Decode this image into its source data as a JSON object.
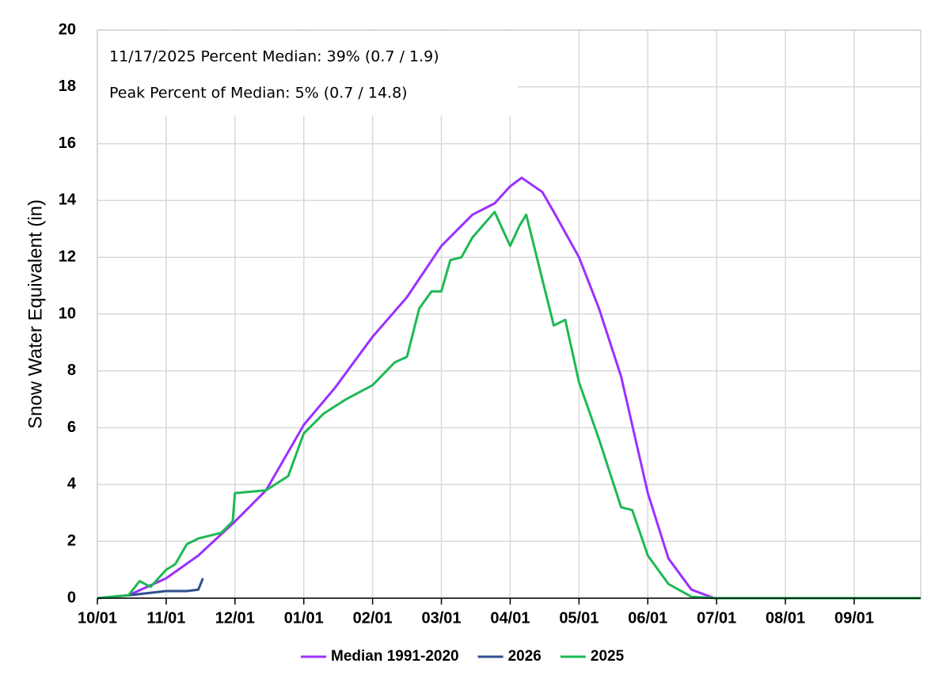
{
  "chart_data": {
    "type": "line",
    "y_label": "Snow Water Equivalent (in)",
    "annotations": [
      "11/17/2025 Percent Median: 39% (0.7 / 1.9)",
      "Peak Percent of Median: 5% (0.7 / 14.8)"
    ],
    "xlim": [
      "10/01",
      "09/30"
    ],
    "xticks": [
      "10/01",
      "11/01",
      "12/01",
      "01/01",
      "02/01",
      "03/01",
      "04/01",
      "05/01",
      "06/01",
      "07/01",
      "08/01",
      "09/01"
    ],
    "ylim": [
      0,
      20
    ],
    "yticks": [
      0,
      2,
      4,
      6,
      8,
      10,
      12,
      14,
      16,
      18,
      20
    ],
    "grid": true,
    "legend": "bottom",
    "series": [
      {
        "name": "Median 1991-2020",
        "color": "#9b30ff",
        "x": [
          "10/01",
          "10/15",
          "11/01",
          "11/15",
          "12/01",
          "12/15",
          "01/01",
          "01/15",
          "02/01",
          "02/15",
          "03/01",
          "03/15",
          "03/25",
          "04/01",
          "04/06",
          "04/15",
          "04/20",
          "05/01",
          "05/10",
          "05/20",
          "06/01",
          "06/10",
          "06/20",
          "06/30",
          "07/15",
          "08/01",
          "08/15",
          "09/01",
          "09/15",
          "09/30"
        ],
        "values": [
          0,
          0.1,
          0.7,
          1.5,
          2.7,
          3.8,
          6.1,
          7.4,
          9.2,
          10.6,
          12.4,
          13.5,
          13.9,
          14.5,
          14.8,
          14.3,
          13.6,
          12.0,
          10.2,
          7.8,
          3.7,
          1.4,
          0.3,
          0,
          0,
          0,
          0,
          0,
          0,
          0
        ]
      },
      {
        "name": "2026",
        "color": "#2f4f8f",
        "x": [
          "10/01",
          "10/15",
          "11/01",
          "11/10",
          "11/15",
          "11/17"
        ],
        "values": [
          0,
          0.1,
          0.25,
          0.25,
          0.3,
          0.7
        ]
      },
      {
        "name": "2025",
        "color": "#1db954",
        "x": [
          "10/01",
          "10/15",
          "10/20",
          "10/25",
          "11/01",
          "11/05",
          "11/10",
          "11/15",
          "11/25",
          "11/30",
          "12/01",
          "12/15",
          "12/25",
          "01/01",
          "01/10",
          "01/20",
          "02/01",
          "02/10",
          "02/15",
          "02/20",
          "02/25",
          "03/01",
          "03/05",
          "03/10",
          "03/15",
          "03/25",
          "04/01",
          "04/05",
          "04/08",
          "04/12",
          "04/20",
          "04/25",
          "05/01",
          "05/10",
          "05/20",
          "05/25",
          "06/01",
          "06/10",
          "06/20",
          "07/01",
          "08/01",
          "09/01",
          "09/30"
        ],
        "values": [
          0,
          0.1,
          0.6,
          0.4,
          1.0,
          1.2,
          1.9,
          2.1,
          2.3,
          2.7,
          3.7,
          3.8,
          4.3,
          5.8,
          6.5,
          7.0,
          7.5,
          8.3,
          8.5,
          10.2,
          10.8,
          10.8,
          11.9,
          12.0,
          12.7,
          13.6,
          12.4,
          13.1,
          13.5,
          12.2,
          9.6,
          9.8,
          7.6,
          5.6,
          3.2,
          3.1,
          1.5,
          0.5,
          0.05,
          0,
          0,
          0,
          0
        ]
      }
    ]
  }
}
